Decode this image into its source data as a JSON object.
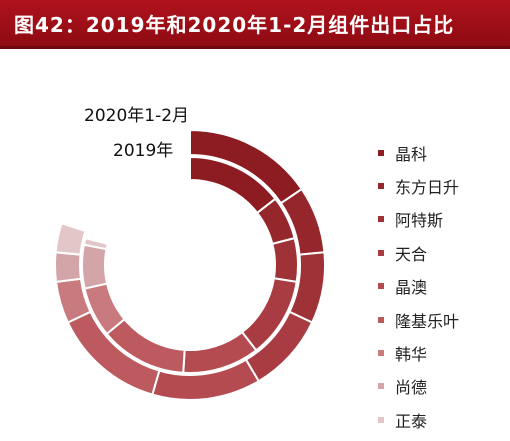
{
  "title": "图42：2019年和2020年1-2月组件出口占比",
  "chart_data": {
    "type": "donut",
    "rings": [
      "2020年1-2月",
      "2019年"
    ],
    "series": [
      {
        "name": "2020年1-2月",
        "values": [
          15.5,
          8.0,
          8.5,
          9.5,
          13.0,
          13.5,
          5.0,
          3.5,
          3.5
        ]
      },
      {
        "name": "2019年",
        "values": [
          14.5,
          6.5,
          6.5,
          12.0,
          11.5,
          13.0,
          7.5,
          6.5,
          1.0
        ]
      }
    ],
    "categories": [
      "晶科",
      "东方日升",
      "阿特斯",
      "天合",
      "晶澳",
      "隆基乐叶",
      "韩华",
      "尚德",
      "正泰"
    ],
    "colors": [
      "#8c1c22",
      "#95262c",
      "#9f3237",
      "#a83c42",
      "#b44b51",
      "#bd5a60",
      "#c97a7e",
      "#d4a5a8",
      "#e3c6c8"
    ],
    "legend_position": "right"
  }
}
